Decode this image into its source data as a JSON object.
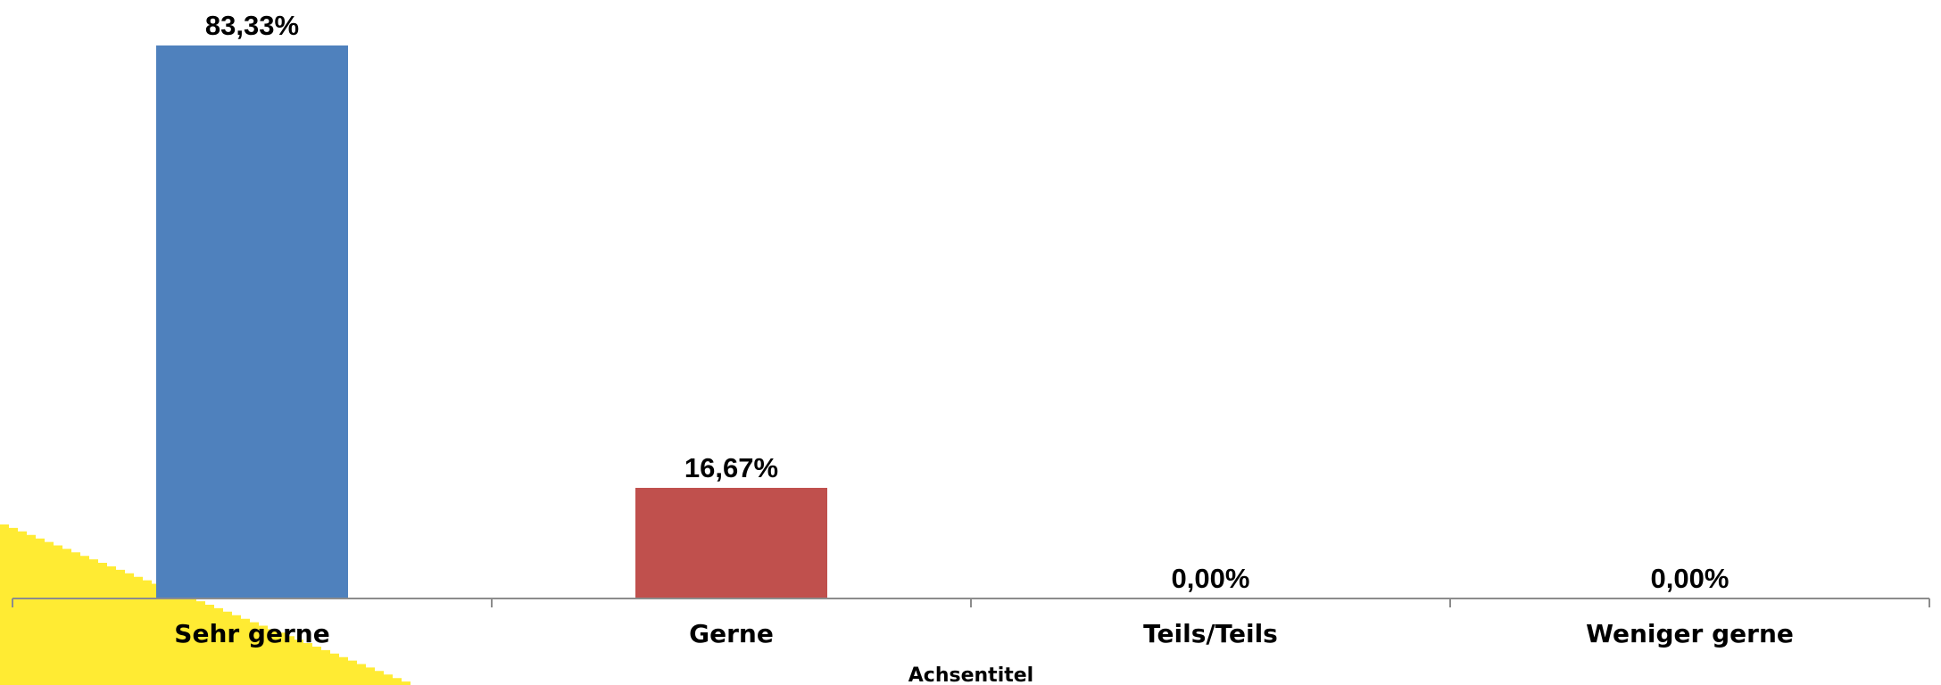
{
  "chart_data": {
    "type": "bar",
    "categories": [
      "Sehr gerne",
      "Gerne",
      "Teils/Teils",
      "Weniger gerne"
    ],
    "values": [
      83.33,
      16.67,
      0.0,
      0.0
    ],
    "data_labels": [
      "83,33%",
      "16,67%",
      "0,00%",
      "0,00%"
    ],
    "bar_colors": [
      "#4F81BD",
      "#C0504D",
      "#9BBB59",
      "#8064A2"
    ],
    "xlabel": "Achsentitel",
    "ylabel": "",
    "ylim": [
      0,
      83.33
    ],
    "grid": false,
    "legend": "none",
    "decoration_color": "#FFEB33"
  }
}
